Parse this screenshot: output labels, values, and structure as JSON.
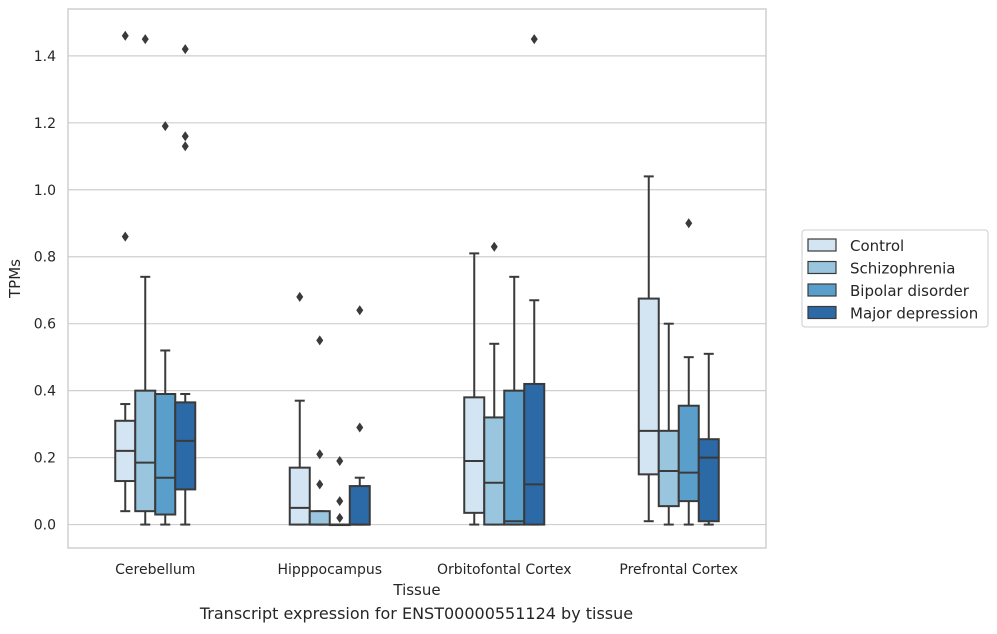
{
  "caption": "Transcript expression for ENST00000551124 by tissue",
  "chart_data": {
    "type": "box",
    "xlabel": "Tissue",
    "ylabel": "TPMs",
    "ylim": [
      -0.07,
      1.54
    ],
    "yticks": [
      "0.0",
      "0.2",
      "0.4",
      "0.6",
      "0.8",
      "1.0",
      "1.2",
      "1.4"
    ],
    "grid": "horizontal",
    "legend_position": "right",
    "categories": [
      "Cerebellum",
      "Hipppocampus",
      "Orbitofontal Cortex",
      "Prefrontal Cortex"
    ],
    "series": [
      {
        "name": "Control",
        "color": "#d3e4f3",
        "boxes": [
          {
            "whisker_low": 0.04,
            "q1": 0.13,
            "median": 0.22,
            "q3": 0.31,
            "whisker_high": 0.36,
            "outliers": [
              0.86,
              1.46
            ]
          },
          {
            "whisker_low": 0.0,
            "q1": 0.0,
            "median": 0.05,
            "q3": 0.17,
            "whisker_high": 0.37,
            "outliers": [
              0.68
            ]
          },
          {
            "whisker_low": 0.0,
            "q1": 0.035,
            "median": 0.19,
            "q3": 0.38,
            "whisker_high": 0.81,
            "outliers": []
          },
          {
            "whisker_low": 0.01,
            "q1": 0.15,
            "median": 0.28,
            "q3": 0.675,
            "whisker_high": 1.04,
            "outliers": []
          }
        ]
      },
      {
        "name": "Schizophrenia",
        "color": "#9ac5df",
        "boxes": [
          {
            "whisker_low": 0.0,
            "q1": 0.04,
            "median": 0.185,
            "q3": 0.4,
            "whisker_high": 0.74,
            "outliers": [
              1.45
            ]
          },
          {
            "whisker_low": 0.0,
            "q1": 0.0,
            "median": 0.0,
            "q3": 0.04,
            "whisker_high": 0.04,
            "outliers": [
              0.12,
              0.21,
              0.55
            ]
          },
          {
            "whisker_low": 0.0,
            "q1": 0.0,
            "median": 0.125,
            "q3": 0.32,
            "whisker_high": 0.54,
            "outliers": [
              0.83
            ]
          },
          {
            "whisker_low": 0.0,
            "q1": 0.055,
            "median": 0.16,
            "q3": 0.28,
            "whisker_high": 0.6,
            "outliers": []
          }
        ]
      },
      {
        "name": "Bipolar disorder",
        "color": "#5a9fcc",
        "boxes": [
          {
            "whisker_low": 0.0,
            "q1": 0.03,
            "median": 0.14,
            "q3": 0.39,
            "whisker_high": 0.52,
            "outliers": [
              1.19
            ]
          },
          {
            "whisker_low": 0.0,
            "q1": 0.0,
            "median": 0.0,
            "q3": 0.0,
            "whisker_high": 0.0,
            "outliers": [
              0.02,
              0.07,
              0.19
            ]
          },
          {
            "whisker_low": 0.0,
            "q1": 0.0,
            "median": 0.01,
            "q3": 0.4,
            "whisker_high": 0.74,
            "outliers": []
          },
          {
            "whisker_low": 0.0,
            "q1": 0.07,
            "median": 0.155,
            "q3": 0.355,
            "whisker_high": 0.5,
            "outliers": [
              0.9
            ]
          }
        ]
      },
      {
        "name": "Major depression",
        "color": "#2b6aa7",
        "boxes": [
          {
            "whisker_low": 0.0,
            "q1": 0.105,
            "median": 0.25,
            "q3": 0.365,
            "whisker_high": 0.39,
            "outliers": [
              1.13,
              1.16,
              1.42
            ]
          },
          {
            "whisker_low": 0.0,
            "q1": 0.0,
            "median": 0.0,
            "q3": 0.115,
            "whisker_high": 0.14,
            "outliers": [
              0.29,
              0.64
            ]
          },
          {
            "whisker_low": 0.0,
            "q1": 0.0,
            "median": 0.12,
            "q3": 0.42,
            "whisker_high": 0.67,
            "outliers": [
              1.45
            ]
          },
          {
            "whisker_low": 0.0,
            "q1": 0.01,
            "median": 0.2,
            "q3": 0.255,
            "whisker_high": 0.51,
            "outliers": []
          }
        ]
      }
    ]
  }
}
